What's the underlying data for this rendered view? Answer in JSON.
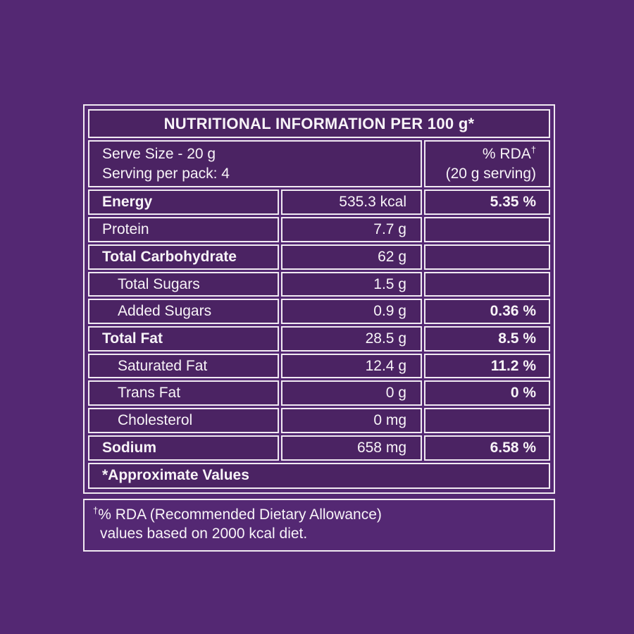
{
  "page": {
    "colors": {
      "bg": "#542873",
      "cell-bg": "#4B2363",
      "border": "#F1EAF2",
      "text": "#F8F4F8"
    }
  },
  "table": {
    "title": "NUTRITIONAL INFORMATION PER 100 g*",
    "header": {
      "serve_size_line1": "Serve Size - 20 g",
      "serve_size_line2": "Serving per pack: 4",
      "rda_label": "% RDA",
      "rda_superscript": "†",
      "rda_line2": "(20 g serving)"
    },
    "rows": [
      {
        "label": "Energy",
        "value": "535.3 kcal",
        "rda": "5.35 %"
      },
      {
        "label": "Protein",
        "value": "7.7 g",
        "rda": ""
      },
      {
        "label": "Total Carbohydrate",
        "value": "62 g",
        "rda": ""
      },
      {
        "label": "Total Sugars",
        "value": "1.5 g",
        "rda": ""
      },
      {
        "label": "Added Sugars",
        "value": "0.9 g",
        "rda": "0.36 %"
      },
      {
        "label": "Total Fat",
        "value": "28.5 g",
        "rda": "8.5 %"
      },
      {
        "label": "Saturated Fat",
        "value": "12.4 g",
        "rda": "11.2 %"
      },
      {
        "label": "Trans Fat",
        "value": "0 g",
        "rda": "0 %"
      },
      {
        "label": "Cholesterol",
        "value": "0 mg",
        "rda": ""
      },
      {
        "label": "Sodium",
        "value": "658 mg",
        "rda": "6.58 %"
      }
    ],
    "footer_note": "*Approximate Values"
  },
  "footnote": {
    "superscript": "†",
    "line1": "% RDA (Recommended Dietary Allowance)",
    "line2": "values based on 2000 kcal diet."
  }
}
